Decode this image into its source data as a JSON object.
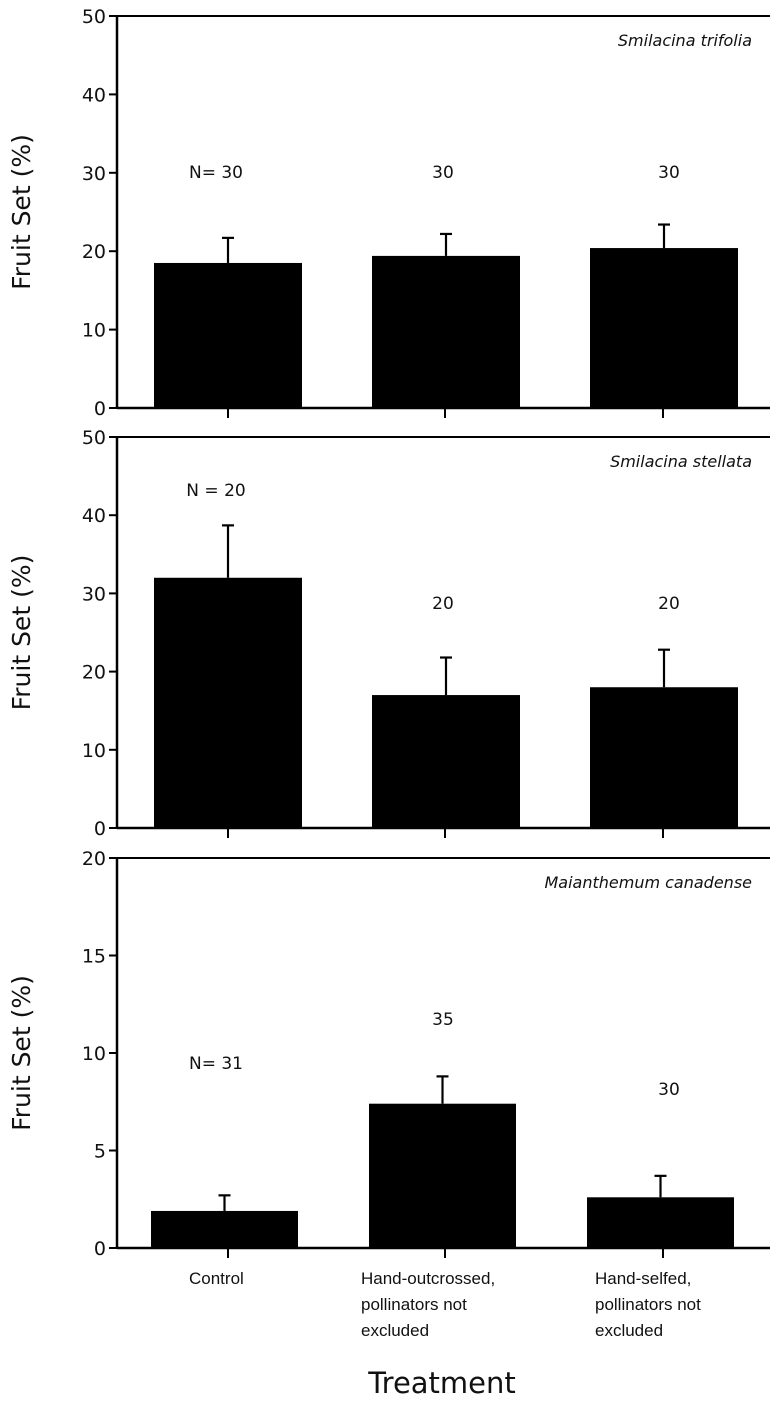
{
  "chart_data": [
    {
      "type": "bar",
      "panel_title": "Smilacina trifolia",
      "ylabel": "Fruit Set (%)",
      "ylim": [
        0,
        50
      ],
      "yticks": [
        0,
        10,
        20,
        30,
        40,
        50
      ],
      "categories": [
        "Control",
        "Hand-outcrossed, pollinators not excluded",
        "Hand-selfed, pollinators not excluded"
      ],
      "values": [
        18.5,
        19.4,
        20.4
      ],
      "errors": [
        3.2,
        2.8,
        3.0
      ],
      "n_labels": [
        "N= 30",
        "30",
        "30"
      ],
      "n_values": [
        30,
        30,
        30
      ]
    },
    {
      "type": "bar",
      "panel_title": "Smilacina stellata",
      "ylabel": "Fruit Set (%)",
      "ylim": [
        0,
        50
      ],
      "yticks": [
        0,
        10,
        20,
        30,
        40,
        50
      ],
      "categories": [
        "Control",
        "Hand-outcrossed, pollinators not excluded",
        "Hand-selfed, pollinators not excluded"
      ],
      "values": [
        32.0,
        17.0,
        18.0
      ],
      "errors": [
        6.7,
        4.8,
        4.8
      ],
      "n_labels": [
        "N = 20",
        "20",
        "20"
      ],
      "n_values": [
        20,
        20,
        20
      ]
    },
    {
      "type": "bar",
      "panel_title": "Maianthemum canadense",
      "ylabel": "Fruit Set (%)",
      "ylim": [
        0,
        20
      ],
      "yticks": [
        0,
        5,
        10,
        15,
        20
      ],
      "categories": [
        "Control",
        "Hand-outcrossed, pollinators not excluded",
        "Hand-selfed, pollinators not excluded"
      ],
      "values": [
        1.9,
        7.4,
        2.6
      ],
      "errors": [
        0.8,
        1.4,
        1.1
      ],
      "n_labels": [
        "N= 31",
        "35",
        "30"
      ],
      "n_values": [
        31,
        35,
        30
      ]
    }
  ],
  "x_axis": {
    "xlabel": "Treatment",
    "category_lines": [
      [
        "Control"
      ],
      [
        "Hand-outcrossed,",
        "pollinators not",
        "excluded"
      ],
      [
        "Hand-selfed,",
        "pollinators not",
        "excluded"
      ]
    ]
  },
  "colors": {
    "bar": "#000000",
    "axis": "#000000",
    "background": "#ffffff"
  }
}
